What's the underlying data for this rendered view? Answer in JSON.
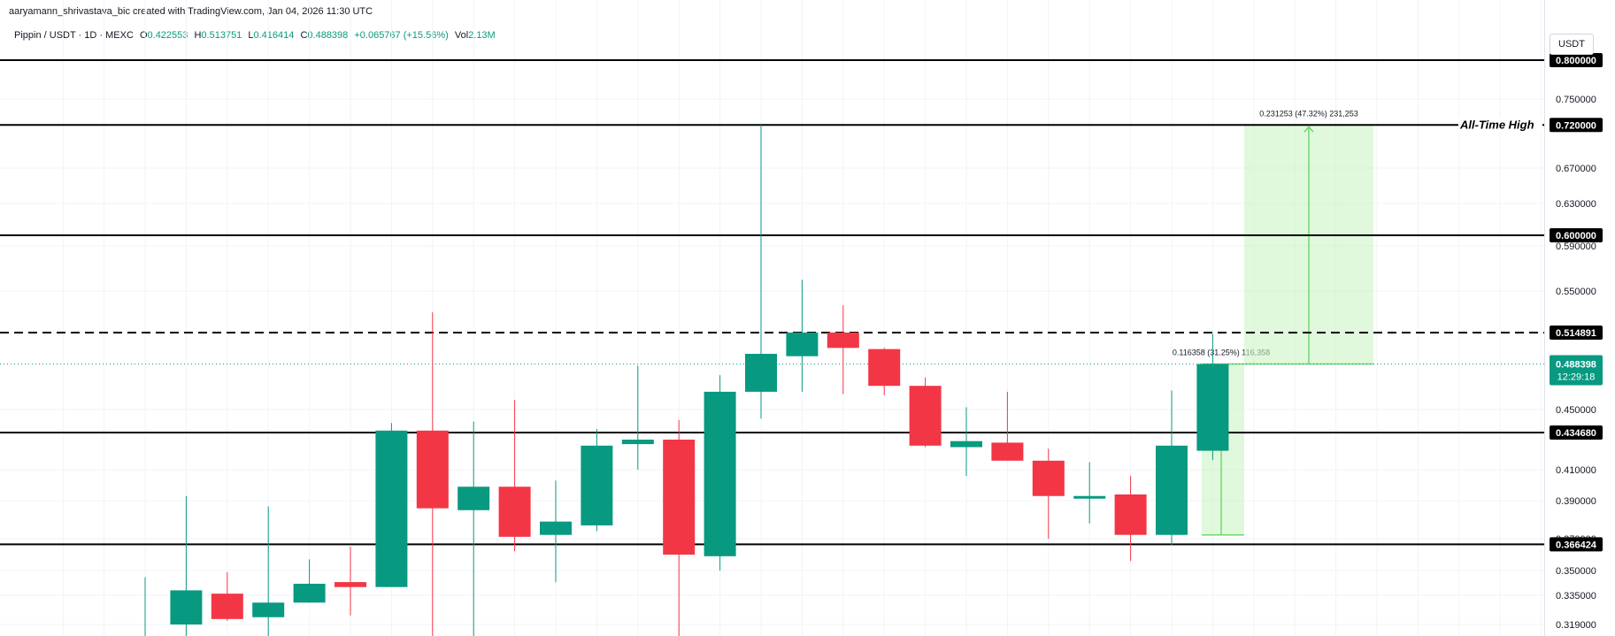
{
  "attribution": "aaryamann_shrivastava_bic created with TradingView.com, Jan 04, 2026 11:30 UTC",
  "legend": {
    "symbol": "Pippin / USDT · 1D · MEXC",
    "open_label": "O",
    "open": "0.422553",
    "high_label": "H",
    "high": "0.513751",
    "low_label": "L",
    "low": "0.416414",
    "close_label": "C",
    "close": "0.488398",
    "change": "+0.065767 (+15.56%)",
    "vol_label": "Vol",
    "vol": "2.13M"
  },
  "axis_unit": "USDT",
  "colors": {
    "up": "#089981",
    "down": "#F23645",
    "level": "#000000",
    "projection": "#7FE57F"
  },
  "chart_data": {
    "type": "candlestick",
    "y_ticks": [
      "0.750000",
      "0.670000",
      "0.630000",
      "0.590000",
      "0.550000",
      "0.450000",
      "0.410000",
      "0.390000",
      "0.370000",
      "0.350000",
      "0.335000",
      "0.319000"
    ],
    "candles": [
      {
        "o": 0.312,
        "h": 0.346,
        "l": 0.305,
        "c": 0.312
      },
      {
        "o": 0.319,
        "h": 0.393,
        "l": 0.305,
        "c": 0.338
      },
      {
        "o": 0.336,
        "h": 0.349,
        "l": 0.321,
        "c": 0.322
      },
      {
        "o": 0.323,
        "h": 0.387,
        "l": 0.313,
        "c": 0.331
      },
      {
        "o": 0.331,
        "h": 0.357,
        "l": 0.331,
        "c": 0.342
      },
      {
        "o": 0.343,
        "h": 0.365,
        "l": 0.324,
        "c": 0.34
      },
      {
        "o": 0.34,
        "h": 0.441,
        "l": 0.34,
        "c": 0.436
      },
      {
        "o": 0.436,
        "h": 0.532,
        "l": 0.31,
        "c": 0.386
      },
      {
        "o": 0.385,
        "h": 0.442,
        "l": 0.307,
        "c": 0.399
      },
      {
        "o": 0.399,
        "h": 0.458,
        "l": 0.362,
        "c": 0.371
      },
      {
        "o": 0.372,
        "h": 0.403,
        "l": 0.343,
        "c": 0.379
      },
      {
        "o": 0.377,
        "h": 0.437,
        "l": 0.374,
        "c": 0.426
      },
      {
        "o": 0.427,
        "h": 0.487,
        "l": 0.41,
        "c": 0.43
      },
      {
        "o": 0.43,
        "h": 0.443,
        "l": 0.305,
        "c": 0.36
      },
      {
        "o": 0.359,
        "h": 0.479,
        "l": 0.35,
        "c": 0.465
      },
      {
        "o": 0.465,
        "h": 0.72,
        "l": 0.444,
        "c": 0.497
      },
      {
        "o": 0.495,
        "h": 0.56,
        "l": 0.465,
        "c": 0.515
      },
      {
        "o": 0.515,
        "h": 0.538,
        "l": 0.463,
        "c": 0.502
      },
      {
        "o": 0.501,
        "h": 0.502,
        "l": 0.462,
        "c": 0.47
      },
      {
        "o": 0.47,
        "h": 0.477,
        "l": 0.425,
        "c": 0.426
      },
      {
        "o": 0.425,
        "h": 0.452,
        "l": 0.406,
        "c": 0.429
      },
      {
        "o": 0.428,
        "h": 0.465,
        "l": 0.416,
        "c": 0.416
      },
      {
        "o": 0.416,
        "h": 0.424,
        "l": 0.37,
        "c": 0.393
      },
      {
        "o": 0.393,
        "h": 0.415,
        "l": 0.378,
        "c": 0.393
      },
      {
        "o": 0.394,
        "h": 0.406,
        "l": 0.356,
        "c": 0.372
      },
      {
        "o": 0.372,
        "h": 0.466,
        "l": 0.366,
        "c": 0.426
      },
      {
        "o": 0.4226,
        "h": 0.5138,
        "l": 0.4164,
        "c": 0.4884
      }
    ],
    "levels": [
      {
        "price": 0.8,
        "label": "0.800000",
        "style": "solid"
      },
      {
        "price": 0.72,
        "label": "0.720000",
        "style": "solid",
        "annotation": "All-Time High"
      },
      {
        "price": 0.6,
        "label": "0.600000",
        "style": "solid"
      },
      {
        "price": 0.514891,
        "label": "0.514891",
        "style": "dashed"
      },
      {
        "price": 0.43468,
        "label": "0.434680",
        "style": "solid"
      },
      {
        "price": 0.366424,
        "label": "0.366424",
        "style": "solid"
      }
    ],
    "current_price": {
      "price": 0.488398,
      "label": "0.488398",
      "countdown": "12:29:18"
    },
    "projections": [
      {
        "from": 0.372,
        "to": 0.488398,
        "label": "0.116358 (31.25%) 116,358"
      },
      {
        "from": 0.488398,
        "to": 0.72,
        "label": "0.231253 (47.32%) 231,253"
      }
    ]
  }
}
